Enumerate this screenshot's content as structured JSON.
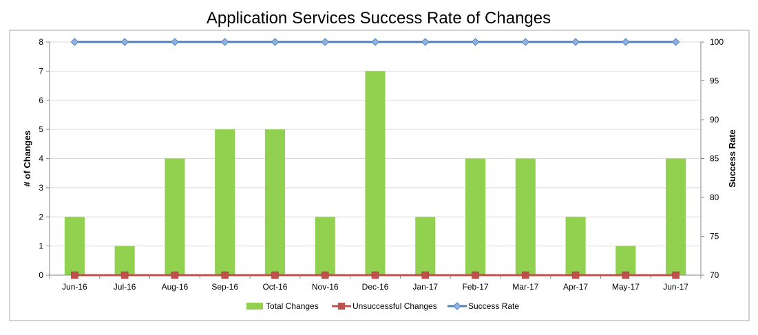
{
  "chart_data": {
    "type": "bar",
    "title": "Application Services Success Rate of Changes",
    "xlabel": "",
    "ylabel": "# of Changes",
    "y2label": "Success Rate",
    "categories": [
      "Jun-16",
      "Jul-16",
      "Aug-16",
      "Sep-16",
      "Oct-16",
      "Nov-16",
      "Dec-16",
      "Jan-17",
      "Feb-17",
      "Mar-17",
      "Apr-17",
      "May-17",
      "Jun-17"
    ],
    "ylim": [
      0,
      8
    ],
    "y2lim": [
      70,
      100
    ],
    "yticks": [
      "0",
      "1",
      "2",
      "3",
      "4",
      "5",
      "6",
      "7",
      "8"
    ],
    "y2ticks": [
      "70",
      "75",
      "80",
      "85",
      "90",
      "95",
      "100"
    ],
    "grid": true,
    "legend_position": "bottom",
    "series": [
      {
        "name": "Total Changes",
        "kind": "bar",
        "axis": "left",
        "color": "#92d050",
        "values": [
          2,
          1,
          4,
          5,
          5,
          2,
          7,
          2,
          4,
          4,
          2,
          1,
          4
        ]
      },
      {
        "name": "Unsuccessful Changes",
        "kind": "line",
        "marker": "square",
        "axis": "left",
        "color": "#c0504d",
        "values": [
          0,
          0,
          0,
          0,
          0,
          0,
          0,
          0,
          0,
          0,
          0,
          0,
          0
        ]
      },
      {
        "name": "Success Rate",
        "kind": "line",
        "marker": "diamond",
        "axis": "right",
        "color": "#4f81bd",
        "values": [
          100,
          100,
          100,
          100,
          100,
          100,
          100,
          100,
          100,
          100,
          100,
          100,
          100
        ]
      }
    ]
  }
}
